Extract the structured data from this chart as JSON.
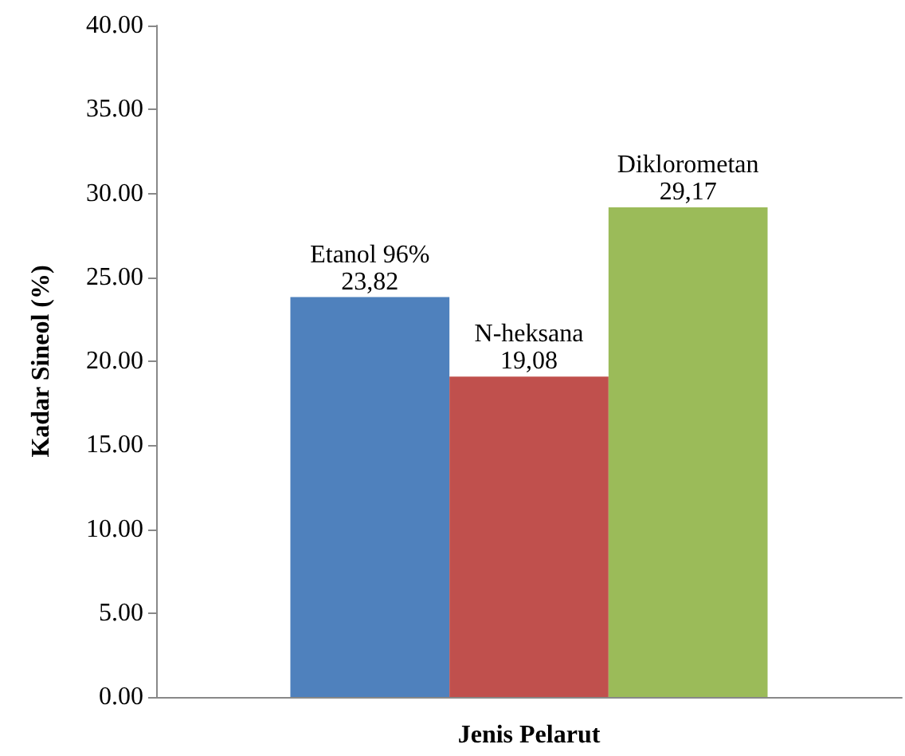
{
  "chart_data": {
    "type": "bar",
    "xlabel": "Jenis Pelarut",
    "ylabel": "Kadar Sineol (%)",
    "categories": [
      null
    ],
    "series": [
      {
        "name": "Etanol 96%",
        "color": "#4f81bd",
        "values": [
          23.82
        ],
        "value_labels": [
          "23,82"
        ]
      },
      {
        "name": "N-heksana",
        "color": "#c0504d",
        "values": [
          19.08
        ],
        "value_labels": [
          "19,08"
        ]
      },
      {
        "name": "Diklorometan",
        "color": "#9bbb59",
        "values": [
          29.17
        ],
        "value_labels": [
          "29,17"
        ]
      }
    ],
    "ylim": [
      0,
      40
    ],
    "yticks": [
      {
        "value": 0,
        "label": "0.00"
      },
      {
        "value": 5,
        "label": "5.00"
      },
      {
        "value": 10,
        "label": "10.00"
      },
      {
        "value": 15,
        "label": "15.00"
      },
      {
        "value": 20,
        "label": "20.00"
      },
      {
        "value": 25,
        "label": "25.00"
      },
      {
        "value": 30,
        "label": "30.00"
      },
      {
        "value": 35,
        "label": "35.00"
      },
      {
        "value": 40,
        "label": "40.00"
      }
    ],
    "grid": false,
    "legend": false
  }
}
